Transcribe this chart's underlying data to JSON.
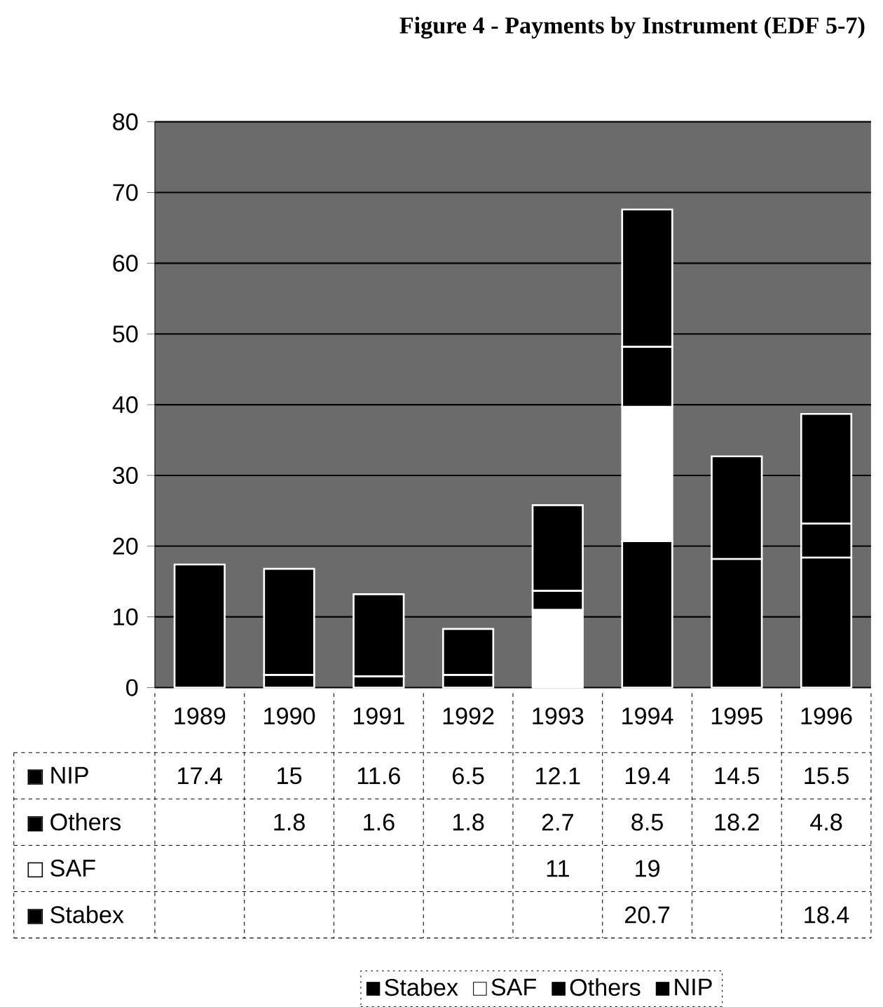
{
  "chart_data": {
    "type": "bar",
    "title": "Figure 4 - Payments by Instrument (EDF 5-7)",
    "categories": [
      "1989",
      "1990",
      "1991",
      "1992",
      "1993",
      "1994",
      "1995",
      "1996"
    ],
    "stacked": true,
    "series": [
      {
        "name": "Stabex",
        "color": "#000000",
        "values": [
          null,
          null,
          null,
          null,
          null,
          20.7,
          null,
          18.4
        ]
      },
      {
        "name": "SAF",
        "color": "#ffffff",
        "values": [
          null,
          null,
          null,
          null,
          11,
          19,
          null,
          null
        ]
      },
      {
        "name": "Others",
        "color": "#000000",
        "values": [
          null,
          1.8,
          1.6,
          1.8,
          2.7,
          8.5,
          18.2,
          4.8
        ]
      },
      {
        "name": "NIP",
        "color": "#000000",
        "values": [
          17.4,
          15,
          11.6,
          6.5,
          12.1,
          19.4,
          14.5,
          15.5
        ]
      }
    ],
    "data_labels": true,
    "ylim": [
      0,
      80
    ],
    "yticks": [
      0,
      10,
      20,
      30,
      40,
      50,
      60,
      70,
      80
    ],
    "grid": "y",
    "legend": "bottom"
  }
}
